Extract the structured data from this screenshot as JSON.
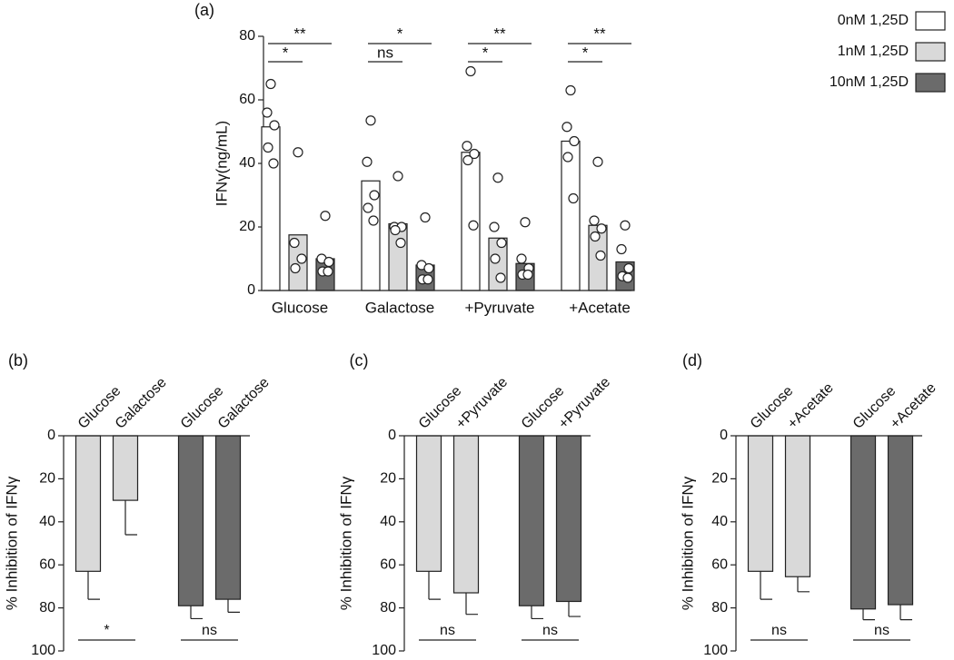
{
  "chart_data": [
    {
      "type": "bar_dots",
      "panel_label": "(a)",
      "y_label": "IFNγ(ng/mL)",
      "categories": [
        "Glucose",
        "Galactose",
        "+Pyruvate",
        "+Acetate"
      ],
      "series": [
        {
          "name": "0nM 1,25D",
          "color": "#ffffff",
          "values": [
            51.5,
            34.5,
            43.5,
            47
          ],
          "points": [
            [
              65,
              56,
              52,
              45,
              40
            ],
            [
              53.5,
              40.5,
              30,
              26,
              22
            ],
            [
              69,
              45.5,
              43,
              41,
              20.5
            ],
            [
              63,
              51.5,
              47,
              42,
              29
            ]
          ]
        },
        {
          "name": "1nM 1,25D",
          "color": "#d9d9d9",
          "values": [
            17.5,
            21,
            16.5,
            20.5
          ],
          "points": [
            [
              43.5,
              15,
              10,
              7
            ],
            [
              36,
              20,
              20,
              19,
              15
            ],
            [
              35.5,
              20,
              15,
              10,
              4
            ],
            [
              40.5,
              22,
              19.5,
              17,
              11
            ]
          ]
        },
        {
          "name": "10nM 1,25D",
          "color": "#6b6b6b",
          "values": [
            10,
            8,
            8.5,
            9
          ],
          "points": [
            [
              23.5,
              10,
              9,
              6,
              6
            ],
            [
              23,
              8,
              7,
              3.5,
              3.5
            ],
            [
              21.5,
              10,
              7,
              5,
              5
            ],
            [
              20.5,
              13,
              7,
              4.5,
              4
            ]
          ]
        }
      ],
      "annotations": [
        [
          "*",
          "**"
        ],
        [
          "ns",
          "*"
        ],
        [
          "*",
          "**"
        ],
        [
          "*",
          "**"
        ]
      ],
      "ylim": [
        0,
        80
      ],
      "yticks": [
        0,
        20,
        40,
        60,
        80
      ],
      "legend": "upper right"
    },
    {
      "type": "bar_error",
      "panel_label": "(b)",
      "y_label": "% Inhibition of IFNγ",
      "y_inverted": true,
      "categories": [
        "Glucose",
        "Galactose",
        "Glucose",
        "Galactose"
      ],
      "values": [
        63,
        30,
        79,
        76
      ],
      "errors": [
        13,
        16,
        6,
        6
      ],
      "colors": [
        "#d9d9d9",
        "#d9d9d9",
        "#6b6b6b",
        "#6b6b6b"
      ],
      "annotations": [
        "*",
        "ns"
      ],
      "ylim": [
        0,
        100
      ],
      "yticks": [
        0,
        20,
        40,
        60,
        80,
        100
      ]
    },
    {
      "type": "bar_error",
      "panel_label": "(c)",
      "y_label": "% Inhibition of IFNγ",
      "y_inverted": true,
      "categories": [
        "Glucose",
        "+Pyruvate",
        "Glucose",
        "+Pyruvate"
      ],
      "values": [
        63,
        73,
        79,
        77
      ],
      "errors": [
        13,
        10,
        6,
        7
      ],
      "colors": [
        "#d9d9d9",
        "#d9d9d9",
        "#6b6b6b",
        "#6b6b6b"
      ],
      "annotations": [
        "ns",
        "ns"
      ],
      "ylim": [
        0,
        100
      ],
      "yticks": [
        0,
        20,
        40,
        60,
        80,
        100
      ]
    },
    {
      "type": "bar_error",
      "panel_label": "(d)",
      "y_label": "% Inhibition of IFNγ",
      "y_inverted": true,
      "categories": [
        "Glucose",
        "+Acetate",
        "Glucose",
        "+Acetate"
      ],
      "values": [
        63,
        65.5,
        80.5,
        78.5
      ],
      "errors": [
        13,
        7,
        5,
        7
      ],
      "colors": [
        "#d9d9d9",
        "#d9d9d9",
        "#6b6b6b",
        "#6b6b6b"
      ],
      "annotations": [
        "ns",
        "ns"
      ],
      "ylim": [
        0,
        100
      ],
      "yticks": [
        0,
        20,
        40,
        60,
        80,
        100
      ]
    }
  ]
}
